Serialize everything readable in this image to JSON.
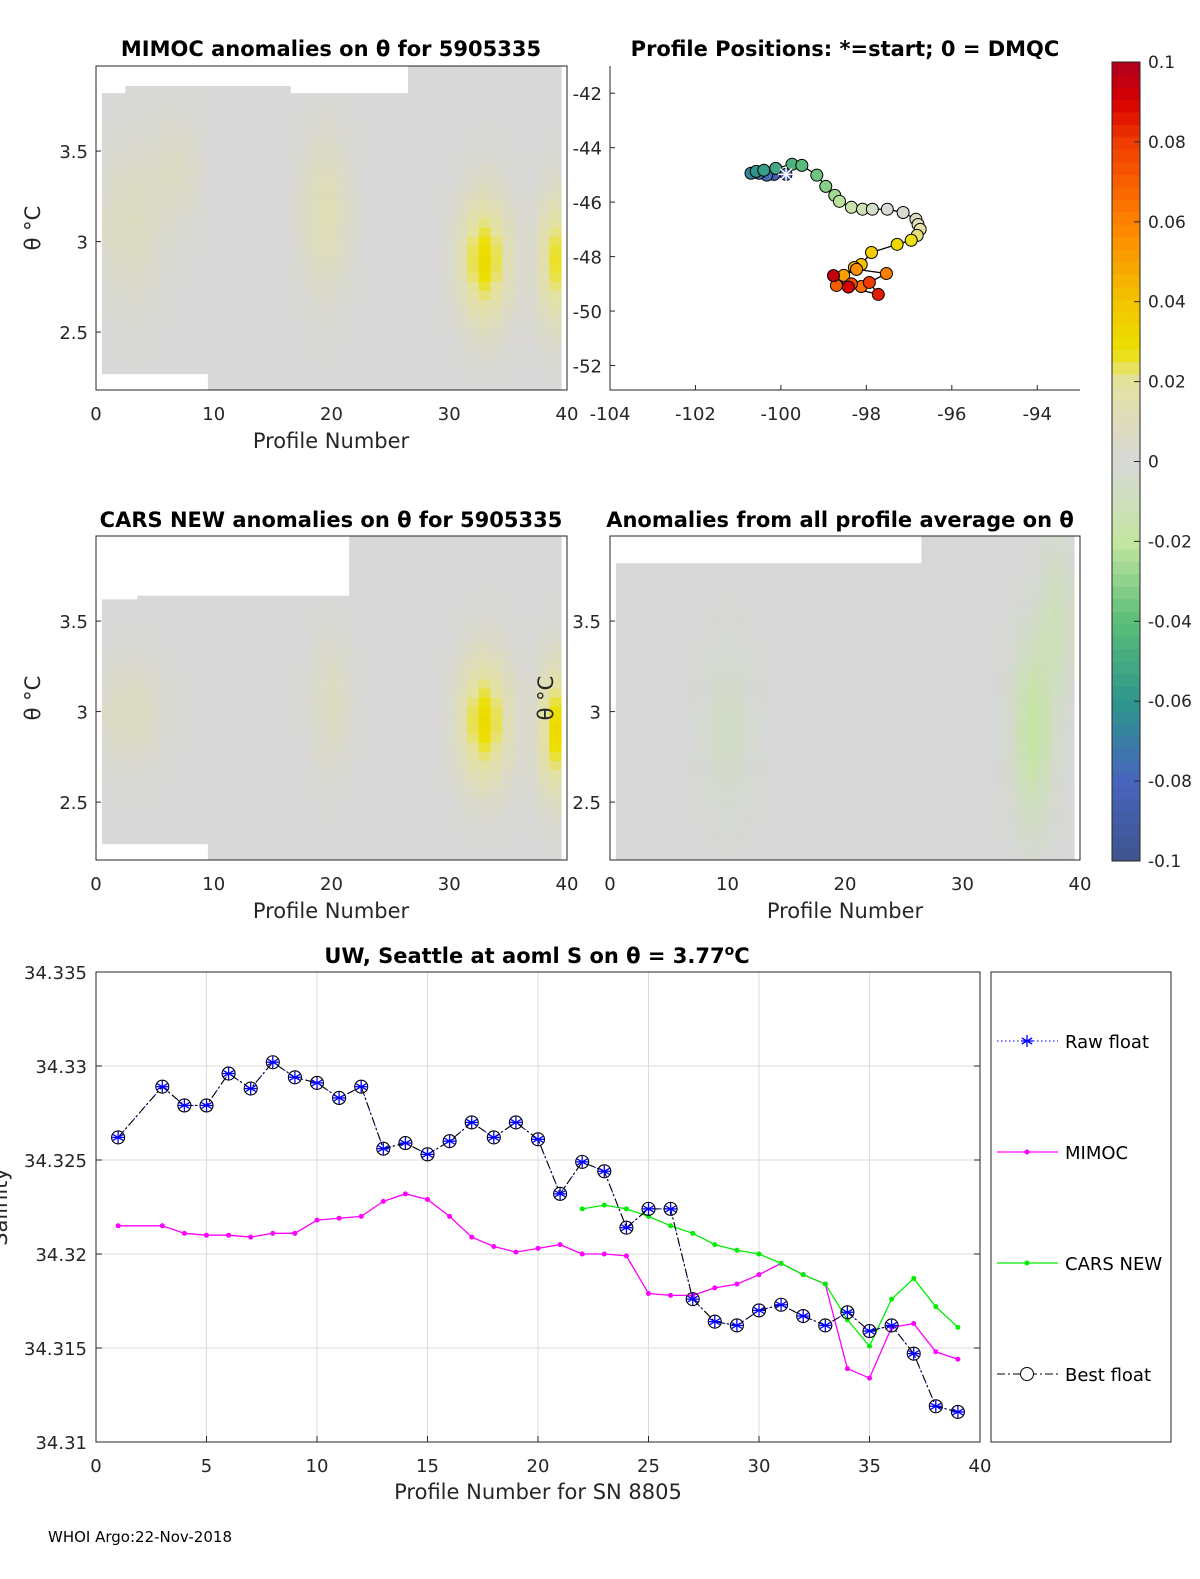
{
  "footer": "WHOI Argo:22-Nov-2018",
  "chart_data": [
    {
      "id": "mimoc",
      "type": "heatmap",
      "title": "MIMOC anomalies on θ  for 5905335",
      "xlabel": "Profile Number",
      "ylabel": "θ °C",
      "xlim": [
        0,
        40
      ],
      "ylim": [
        2.18,
        3.97
      ],
      "xticks": [
        "0",
        "10",
        "20",
        "30",
        "40"
      ],
      "yticks": [
        "2.5",
        "3",
        "3.5"
      ],
      "features": [
        {
          "profile": 33,
          "theta": 2.9,
          "sp": 1.5,
          "st": 0.25,
          "value": 0.03
        },
        {
          "profile": 39,
          "theta": 2.9,
          "sp": 1.0,
          "st": 0.25,
          "value": 0.026
        },
        {
          "profile": 19.5,
          "theta": 3.15,
          "sp": 1.5,
          "st": 0.3,
          "value": 0.012
        },
        {
          "profile": 3,
          "theta": 3.1,
          "sp": 2,
          "st": 0.3,
          "value": 0.008
        },
        {
          "profile": 7,
          "theta": 3.4,
          "sp": 1.5,
          "st": 0.2,
          "value": 0.006
        }
      ]
    },
    {
      "id": "positions",
      "type": "scatter",
      "title": "Profile Positions: *=start; 0 = DMQC",
      "xlim": [
        -104,
        -93
      ],
      "ylim": [
        -52.9,
        -41
      ],
      "xticks": [
        "-104",
        "-102",
        "-100",
        "-98",
        "-96",
        "-94"
      ],
      "yticks": [
        "-42",
        "-44",
        "-46",
        "-48",
        "-50",
        "-52"
      ],
      "lon": [
        -99.88,
        -100.16,
        -100.33,
        -100.51,
        -100.7,
        -100.58,
        -100.4,
        -100.12,
        -99.74,
        -99.51,
        -99.16,
        -98.95,
        -98.74,
        -98.63,
        -98.35,
        -98.09,
        -97.86,
        -97.51,
        -97.14,
        -96.84,
        -96.79,
        -96.74,
        -96.81,
        -96.95,
        -97.28,
        -97.88,
        -98.12,
        -98.28,
        -98.53,
        -98.23,
        -97.53,
        -98.12,
        -98.7,
        -98.35,
        -97.93,
        -97.72,
        -98.42,
        -98.77
      ],
      "lat": [
        -44.98,
        -44.98,
        -45.01,
        -44.94,
        -44.94,
        -44.87,
        -44.83,
        -44.76,
        -44.61,
        -44.65,
        -45.01,
        -45.42,
        -45.75,
        -45.97,
        -46.19,
        -46.26,
        -46.26,
        -46.26,
        -46.38,
        -46.63,
        -46.82,
        -47.0,
        -47.22,
        -47.4,
        -47.55,
        -47.85,
        -48.29,
        -48.4,
        -48.69,
        -48.47,
        -48.62,
        -49.1,
        -49.06,
        -49.0,
        -48.95,
        -49.39,
        -49.12,
        -48.7
      ]
    },
    {
      "id": "cars",
      "type": "heatmap",
      "title": "CARS NEW anomalies on θ for 5905335",
      "xlabel": "Profile Number",
      "ylabel": "θ °C",
      "xlim": [
        0,
        40
      ],
      "ylim": [
        2.18,
        3.97
      ],
      "xticks": [
        "0",
        "10",
        "20",
        "30",
        "40"
      ],
      "yticks": [
        "2.5",
        "3",
        "3.5"
      ],
      "features": [
        {
          "profile": 33,
          "theta": 2.95,
          "sp": 1.5,
          "st": 0.25,
          "value": 0.03
        },
        {
          "profile": 39,
          "theta": 2.9,
          "sp": 1.0,
          "st": 0.25,
          "value": 0.03
        },
        {
          "profile": 20,
          "theta": 3.05,
          "sp": 1.2,
          "st": 0.25,
          "value": 0.008
        },
        {
          "profile": 3,
          "theta": 3.0,
          "sp": 2,
          "st": 0.2,
          "value": 0.008
        }
      ]
    },
    {
      "id": "allavg",
      "type": "heatmap",
      "title": "Anomalies from all profile average on θ",
      "xlabel": "Profile Number",
      "ylabel": "θ °C",
      "xlim": [
        0,
        40
      ],
      "ylim": [
        2.18,
        3.97
      ],
      "xticks": [
        "0",
        "10",
        "20",
        "30",
        "40"
      ],
      "yticks": [
        "2.5",
        "3",
        "3.5"
      ],
      "features": [
        {
          "profile": 36,
          "theta": 2.9,
          "sp": 1.2,
          "st": 0.35,
          "value": -0.018
        },
        {
          "profile": 38,
          "theta": 3.5,
          "sp": 1.0,
          "st": 0.3,
          "value": -0.01
        },
        {
          "profile": 10,
          "theta": 2.9,
          "sp": 1.5,
          "st": 0.3,
          "value": -0.006
        }
      ]
    },
    {
      "id": "colorbar",
      "type": "colorbar",
      "range": [
        -0.1,
        0.1
      ],
      "ticks": [
        "0.1",
        "0.08",
        "0.06",
        "0.04",
        "0.02",
        "0",
        "-0.02",
        "-0.04",
        "-0.06",
        "-0.08",
        "-0.1"
      ]
    },
    {
      "id": "salinity",
      "type": "line",
      "title": "UW, Seattle at aoml S on θ = 3.77",
      "title_sup": "o",
      "title_end": "C",
      "xlabel": "Profile Number for SN 8805",
      "ylabel": "Salinity",
      "xlim": [
        0,
        40
      ],
      "ylim": [
        34.31,
        34.335
      ],
      "xticks": [
        "0",
        "5",
        "10",
        "15",
        "20",
        "25",
        "30",
        "35",
        "40"
      ],
      "yticks": [
        "34.31",
        "34.315",
        "34.32",
        "34.325",
        "34.33",
        "34.335"
      ],
      "grid": true,
      "legend": "outside-right",
      "series": [
        {
          "name": "Raw float",
          "color": "#0000ff",
          "x": [
            1,
            3,
            4,
            5,
            6,
            7,
            8,
            9,
            10,
            11,
            12,
            13,
            14,
            15,
            16,
            17,
            18,
            19,
            20,
            21,
            22,
            23,
            24,
            25,
            26,
            27,
            28,
            29,
            30,
            31,
            32,
            33,
            34,
            35,
            36,
            37,
            38,
            39
          ],
          "y": [
            34.3262,
            34.3289,
            34.3279,
            34.3279,
            34.3296,
            34.3288,
            34.3302,
            34.3294,
            34.3291,
            34.3283,
            34.3289,
            34.3256,
            34.3259,
            34.3253,
            34.326,
            34.327,
            34.3262,
            34.327,
            34.3261,
            34.3232,
            34.3249,
            34.3244,
            34.3214,
            34.3224,
            34.3224,
            34.3176,
            34.3164,
            34.3162,
            34.317,
            34.3173,
            34.3167,
            34.3162,
            34.3169,
            34.3159,
            34.3162,
            34.3147,
            34.3119,
            34.3116
          ]
        },
        {
          "name": "MIMOC",
          "color": "#ff00ff",
          "x": [
            1,
            3,
            4,
            5,
            6,
            7,
            8,
            9,
            10,
            11,
            12,
            13,
            14,
            15,
            16,
            17,
            18,
            19,
            20,
            21,
            22,
            23,
            24,
            25,
            26,
            27,
            28,
            29,
            30,
            31,
            32,
            33,
            34,
            35,
            36,
            37,
            38,
            39
          ],
          "y": [
            34.3215,
            34.3215,
            34.3211,
            34.321,
            34.321,
            34.3209,
            34.3211,
            34.3211,
            34.3218,
            34.3219,
            34.322,
            34.3228,
            34.3232,
            34.3229,
            34.322,
            34.3209,
            34.3204,
            34.3201,
            34.3203,
            34.3205,
            34.32,
            34.32,
            34.3199,
            34.3179,
            34.3178,
            34.3178,
            34.3182,
            34.3184,
            34.3189,
            34.3195,
            34.3189,
            34.3184,
            34.3139,
            34.3134,
            34.3161,
            34.3163,
            34.3148,
            34.3144
          ]
        },
        {
          "name": "CARS NEW",
          "color": "#00ee00",
          "x": [
            22,
            23,
            24,
            25,
            26,
            27,
            28,
            29,
            30,
            31,
            32,
            33,
            34,
            35,
            36,
            37,
            38,
            39
          ],
          "y": [
            34.3224,
            34.3226,
            34.3224,
            34.322,
            34.3215,
            34.3211,
            34.3205,
            34.3202,
            34.32,
            34.3195,
            34.3189,
            34.3184,
            34.3165,
            34.3151,
            34.3176,
            34.3187,
            34.3172,
            34.3161
          ]
        },
        {
          "name": "Best float",
          "color": "#000000",
          "x": [
            1,
            3,
            4,
            5,
            6,
            7,
            8,
            9,
            10,
            11,
            12,
            13,
            14,
            15,
            16,
            17,
            18,
            19,
            20,
            21,
            22,
            23,
            24,
            25,
            26,
            27,
            28,
            29,
            30,
            31,
            32,
            33,
            34,
            35,
            36,
            37,
            38,
            39
          ],
          "y": [
            34.3262,
            34.3289,
            34.3279,
            34.3279,
            34.3296,
            34.3288,
            34.3302,
            34.3294,
            34.3291,
            34.3283,
            34.3289,
            34.3256,
            34.3259,
            34.3253,
            34.326,
            34.327,
            34.3262,
            34.327,
            34.3261,
            34.3232,
            34.3249,
            34.3244,
            34.3214,
            34.3224,
            34.3224,
            34.3176,
            34.3164,
            34.3162,
            34.317,
            34.3173,
            34.3167,
            34.3162,
            34.3169,
            34.3159,
            34.3162,
            34.3147,
            34.3119,
            34.3116
          ]
        }
      ]
    }
  ]
}
